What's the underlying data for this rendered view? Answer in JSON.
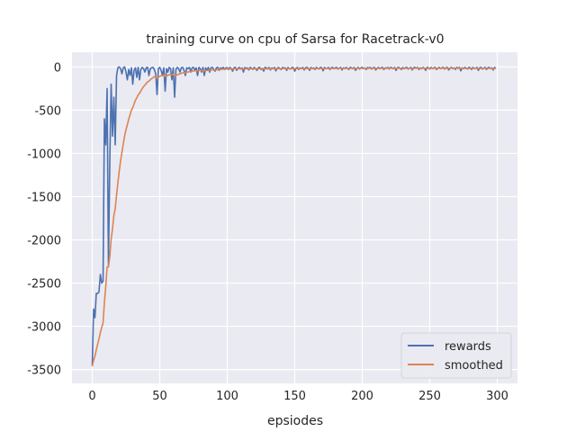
{
  "chart_data": {
    "type": "line",
    "title": "training curve on cpu of Sarsa for Racetrack-v0",
    "xlabel": "epsiodes",
    "ylabel": "",
    "xlim": [
      -15,
      315
    ],
    "ylim": [
      -3660,
      170
    ],
    "xticks": [
      0,
      50,
      100,
      150,
      200,
      250,
      300
    ],
    "yticks": [
      0,
      -500,
      -1000,
      -1500,
      -2000,
      -2500,
      -3000,
      -3500
    ],
    "grid": true,
    "background": "#eaeaf2",
    "legend_position": "bottom-right",
    "series": [
      {
        "name": "rewards",
        "color": "#4c72b0",
        "values": [
          -3460,
          -2800,
          -2900,
          -2620,
          -2620,
          -2600,
          -2400,
          -2500,
          -2480,
          -600,
          -900,
          -250,
          -2300,
          -1100,
          -200,
          -800,
          -350,
          -900,
          -100,
          -10,
          0,
          -20,
          -80,
          -10,
          0,
          -60,
          -150,
          -30,
          -100,
          -10,
          -200,
          -40,
          -10,
          -120,
          -5,
          -150,
          -30,
          -5,
          -20,
          -60,
          -10,
          -5,
          -100,
          -20,
          -10,
          -5,
          -30,
          -80,
          -320,
          -20,
          -5,
          -40,
          -100,
          -10,
          -280,
          -20,
          -60,
          -5,
          -20,
          -150,
          -10,
          -350,
          -30,
          -5,
          -20,
          -60,
          -10,
          -5,
          -40,
          -100,
          -10,
          -20,
          -5,
          -60,
          -10,
          -5,
          -40,
          -10,
          -100,
          -5,
          -20,
          -60,
          -5,
          -100,
          -10,
          -40,
          -5,
          -60,
          -10,
          -5,
          -30,
          -50,
          -10,
          -5,
          -40,
          -10,
          -20,
          -5,
          -30,
          -10,
          -10,
          -30,
          -5,
          -20,
          -50,
          -10,
          -5,
          -40,
          -15,
          -5,
          -25,
          -10,
          -60,
          -5,
          -20,
          -10,
          -35,
          -5,
          -15,
          -30,
          -5,
          -20,
          -40,
          -10,
          -5,
          -30,
          -15,
          -50,
          -5,
          -10,
          -25,
          -5,
          -35,
          -10,
          -20,
          -5,
          -45,
          -15,
          -5,
          -20,
          -30,
          -5,
          -15,
          -10,
          -40,
          -5,
          -20,
          -25,
          -5,
          -10,
          -50,
          -15,
          -5,
          -30,
          -10,
          -20,
          -5,
          -35,
          -10,
          -5,
          -15,
          -40,
          -5,
          -20,
          -10,
          -30,
          -5,
          -15,
          -25,
          -5,
          -10,
          -45,
          -5,
          -20,
          -15,
          -5,
          -30,
          -10,
          -5,
          -20,
          -10,
          -5,
          -25,
          -15,
          -5,
          -35,
          -10,
          -20,
          -5,
          -15,
          -30,
          -5,
          -10,
          -20,
          -5,
          -40,
          -15,
          -5,
          -25,
          -10,
          -5,
          -20,
          -10,
          -30,
          -5,
          -15,
          -5,
          -25,
          -10,
          -5,
          -35,
          -15,
          -5,
          -20,
          -10,
          -5,
          -30,
          -10,
          -15,
          -5,
          -25,
          -5,
          -10,
          -20,
          -5,
          -40,
          -10,
          -5,
          -15,
          -30,
          -5,
          -20,
          -10,
          -5,
          -25,
          -15,
          -5,
          -35,
          -10,
          -5,
          -15,
          -5,
          -30,
          -10,
          -20,
          -5,
          -15,
          -40,
          -5,
          -10,
          -25,
          -5,
          -20,
          -10,
          -5,
          -30,
          -15,
          -5,
          -20,
          -10,
          -5,
          -25,
          -10,
          -5,
          -35,
          -15,
          -5,
          -20,
          -10,
          -30,
          -5,
          -15,
          -5,
          -45,
          -10,
          -20,
          -5,
          -15,
          -25,
          -5,
          -10,
          -30,
          -5,
          -20,
          -15,
          -5,
          -40,
          -10,
          -5,
          -25,
          -15,
          -5,
          -30,
          -10,
          -5,
          -20,
          -10,
          -35,
          -5,
          -15
        ]
      },
      {
        "name": "smoothed",
        "color": "#dd8452",
        "values": [
          -3460,
          -3394,
          -3345,
          -3272,
          -3207,
          -3146,
          -3072,
          -3014,
          -2961,
          -2725,
          -2543,
          -2314,
          -2313,
          -2192,
          -1993,
          -1874,
          -1721,
          -1639,
          -1485,
          -1338,
          -1204,
          -1086,
          -985,
          -888,
          -799,
          -725,
          -668,
          -604,
          -554,
          -500,
          -470,
          -427,
          -385,
          -358,
          -323,
          -306,
          -278,
          -251,
          -228,
          -211,
          -191,
          -172,
          -165,
          -150,
          -136,
          -123,
          -114,
          -111,
          -132,
          -121,
          -109,
          -102,
          -102,
          -93,
          -112,
          -103,
          -99,
          -90,
          -83,
          -90,
          -82,
          -109,
          -101,
          -91,
          -84,
          -82,
          -75,
          -68,
          -65,
          -69,
          -63,
          -59,
          -54,
          -55,
          -50,
          -46,
          -45,
          -42,
          -48,
          -44,
          -41,
          -43,
          -39,
          -45,
          -42,
          -42,
          -38,
          -40,
          -37,
          -34,
          -34,
          -36,
          -33,
          -30,
          -31,
          -29,
          -28,
          -26,
          -26,
          -24,
          -23,
          -24,
          -22,
          -22,
          -25,
          -23,
          -21,
          -23,
          -22,
          -20,
          -21,
          -20,
          -24,
          -22,
          -22,
          -21,
          -22,
          -20,
          -20,
          -21,
          -20,
          -20,
          -22,
          -21,
          -19,
          -20,
          -20,
          -23,
          -21,
          -20,
          -20,
          -19,
          -21,
          -20,
          -20,
          -18,
          -21,
          -20,
          -19,
          -19,
          -20,
          -19,
          -18,
          -18,
          -20,
          -19,
          -19,
          -20,
          -18,
          -18,
          -21,
          -20,
          -19,
          -20,
          -19,
          -19,
          -18,
          -20,
          -19,
          -18,
          -18,
          -20,
          -18,
          -18,
          -18,
          -19,
          -18,
          -18,
          -19,
          -17,
          -17,
          -20,
          -18,
          -18,
          -18,
          -17,
          -19,
          -18,
          -17,
          -17,
          -17,
          -16,
          -17,
          -17,
          -16,
          -18,
          -17,
          -17,
          -16,
          -16,
          -17,
          -16,
          -16,
          -16,
          -15,
          -18,
          -17,
          -16,
          -17,
          -16,
          -15,
          -16,
          -15,
          -17,
          -16,
          -16,
          -15,
          -16,
          -16,
          -15,
          -17,
          -17,
          -16,
          -16,
          -16,
          -15,
          -16,
          -16,
          -16,
          -15,
          -16,
          -15,
          -15,
          -15,
          -14,
          -17,
          -16,
          -15,
          -15,
          -17,
          -16,
          -16,
          -16,
          -15,
          -16,
          -16,
          -15,
          -17,
          -16,
          -15,
          -15,
          -14,
          -16,
          -15,
          -16,
          -15,
          -15,
          -17,
          -16,
          -15,
          -16,
          -15,
          -16,
          -15,
          -14,
          -16,
          -16,
          -15,
          -16,
          -15,
          -14,
          -15,
          -15,
          -14,
          -16,
          -16,
          -15,
          -15,
          -15,
          -16,
          -15,
          -15,
          -14,
          -17,
          -16,
          -17,
          -16,
          -16,
          -17,
          -16,
          -15,
          -17,
          -16,
          -16,
          -16,
          -15,
          -18,
          -17,
          -16,
          -17,
          -17,
          -16,
          -17,
          -17,
          -16,
          -16,
          -16,
          -18,
          -17,
          -17
        ]
      }
    ]
  }
}
